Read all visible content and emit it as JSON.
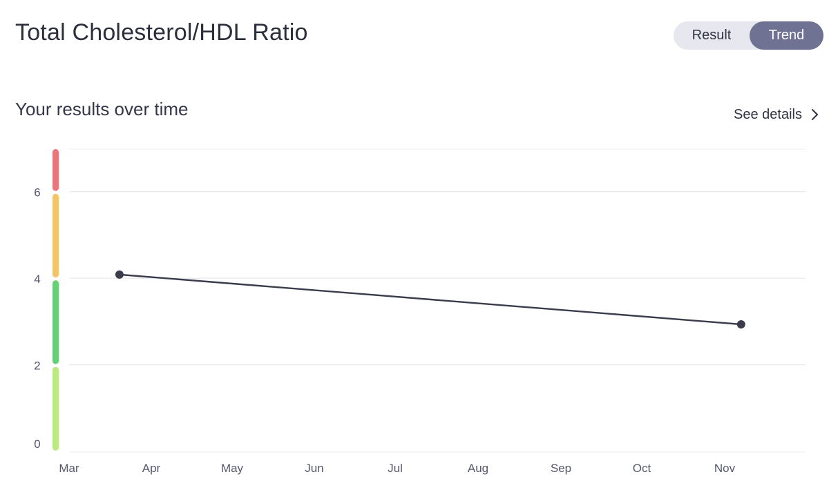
{
  "header": {
    "title": "Total Cholesterol/HDL Ratio"
  },
  "view_toggle": {
    "options": [
      "Result",
      "Trend"
    ],
    "selected": "Trend"
  },
  "section": {
    "title": "Your results over time",
    "details_link": "See details",
    "details_icon": "chevron-right-icon"
  },
  "colors": {
    "line": "#3a3c4b",
    "range_high": "#e8767a",
    "range_borderline": "#f2c56a",
    "range_optimal": "#67cf78",
    "range_low": "#bde983",
    "toggle_active": "#6f7292"
  },
  "chart_data": {
    "type": "line",
    "x_ticks": [
      "Mar",
      "Apr",
      "May",
      "Jun",
      "Jul",
      "Aug",
      "Sep",
      "Oct",
      "Nov"
    ],
    "y_ticks": [
      0,
      2,
      4,
      6
    ],
    "ylim": [
      0,
      7
    ],
    "grid": true,
    "series": [
      {
        "points": [
          {
            "x": "2023-03-20",
            "y": 4.1
          },
          {
            "x": "2023-11-07",
            "y": 2.95
          }
        ]
      }
    ],
    "ranges": [
      {
        "from": 0,
        "to": 2,
        "color": "#bde983"
      },
      {
        "from": 2,
        "to": 4,
        "color": "#67cf78"
      },
      {
        "from": 4,
        "to": 6,
        "color": "#f2c56a"
      },
      {
        "from": 6,
        "to": 7,
        "color": "#e8767a"
      }
    ]
  }
}
